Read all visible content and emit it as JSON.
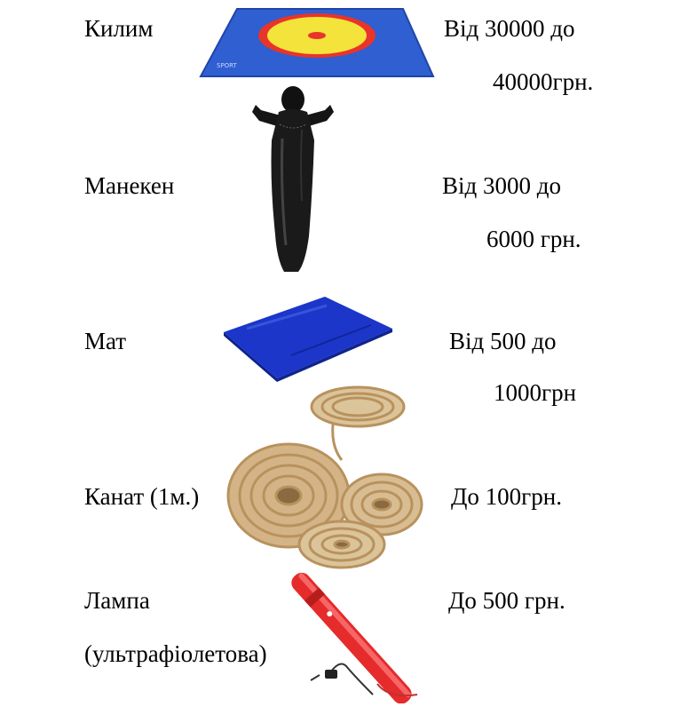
{
  "items": [
    {
      "name": "Килим",
      "price_line1": "Від 30000 до",
      "price_line2": "40000грн.",
      "image_icon": "wrestling-carpet-icon",
      "colors": {
        "carpet": "#2f5fd0",
        "ring_outer": "#e8342a",
        "ring_inner": "#f3e33a"
      }
    },
    {
      "name": "Манекен",
      "price_line1": "Від 3000 до",
      "price_line2": "6000 грн.",
      "image_icon": "wrestling-dummy-icon",
      "colors": {
        "dummy": "#111111"
      }
    },
    {
      "name": "Мат",
      "price_line1": "Від 500 до",
      "price_line2": "1000грн",
      "image_icon": "gym-mat-icon",
      "colors": {
        "mat": "#1b36c9"
      }
    },
    {
      "name": "Канат (1м.)",
      "price_line1": "До 100грн.",
      "image_icon": "rope-coils-icon",
      "colors": {
        "rope": "#c9a978"
      }
    },
    {
      "name_line1": "Лампа",
      "name_line2": "(ультрафіолетова)",
      "price_line1": "До 500 грн.",
      "image_icon": "uv-lamp-icon",
      "colors": {
        "lamp": "#e52b2b"
      }
    }
  ]
}
